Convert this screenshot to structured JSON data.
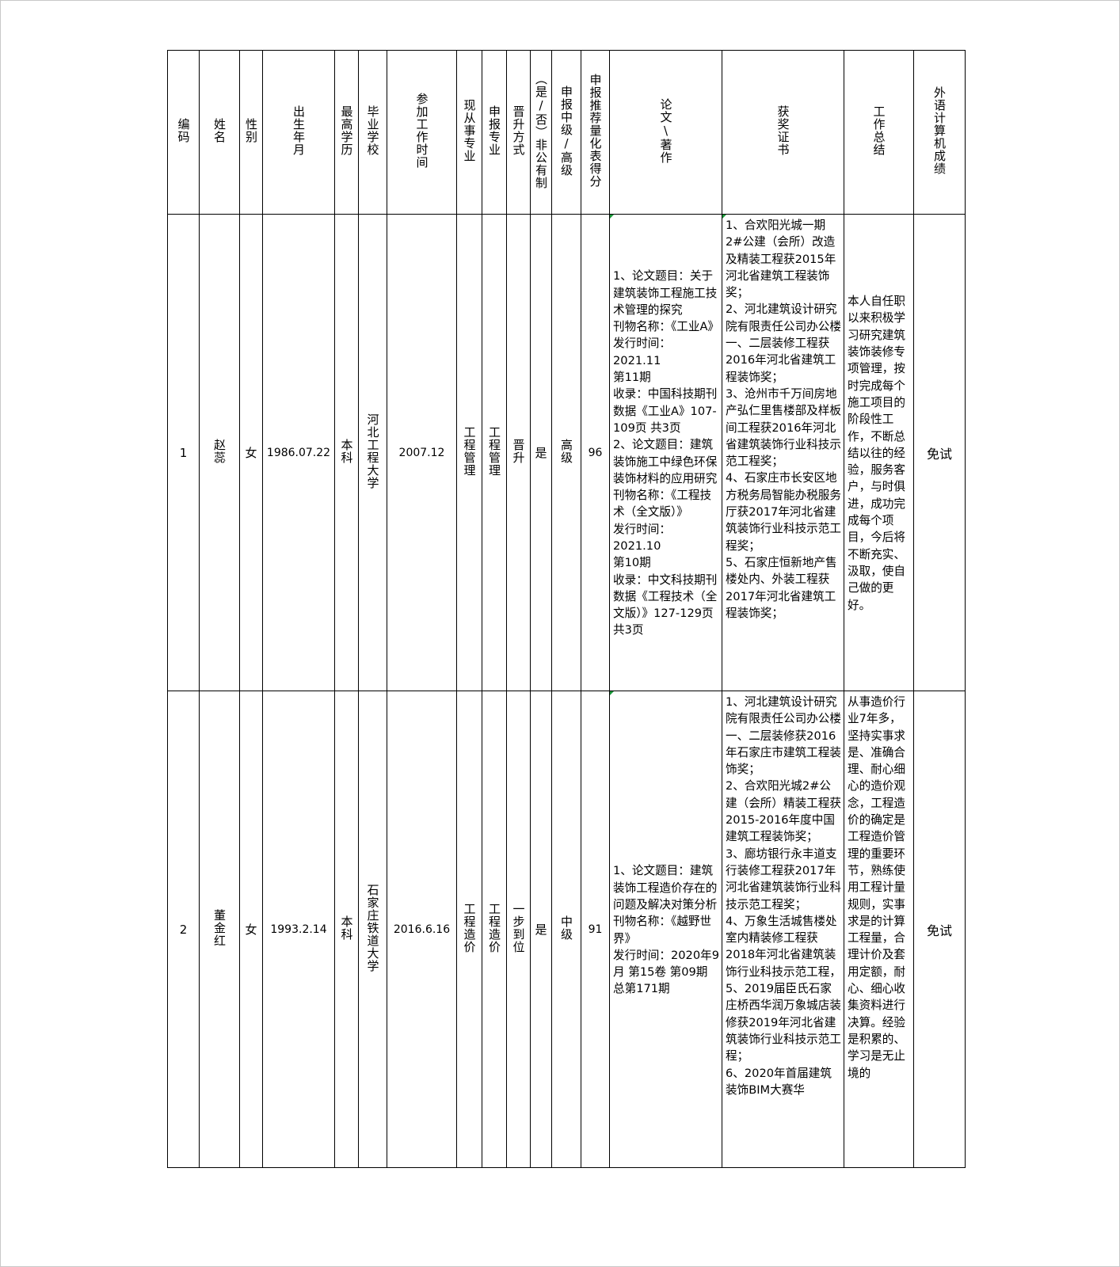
{
  "headers": [
    "编码",
    "姓名",
    "性别",
    "出生年月",
    "最高学历",
    "毕业学校",
    "参加工作时间",
    "现从事专业",
    "申报专业",
    "晋升方式",
    "（是/否）非公有制",
    "申报中级/高级",
    "申报推荐量化表得分",
    "论文\\著作",
    "获奖证书",
    "工作总结",
    "外语计算机成绩"
  ],
  "rows": [
    {
      "id": "1",
      "name": "赵蕊",
      "gender": "女",
      "birth": "1986.07.22",
      "education": "本科",
      "school": "河北工程大学",
      "work_start": "2007.12",
      "current_major": "工程管理",
      "apply_major": "工程管理",
      "promotion": "晋升",
      "non_public": "是",
      "level": "高级",
      "score": "96",
      "papers": "1、论文题目：关于建筑装饰工程施工技术管理的探究\n刊物名称：《工业A》\n发行时间：\n2021.11\n第11期\n收录：中国科技期刊数据《工业A》107-109页 共3页\n2、论文题目：建筑装饰施工中绿色环保装饰材料的应用研究\n刊物名称：《工程技术（全文版）》\n发行时间：\n2021.10\n第10期\n收录：中文科技期刊数据《工程技术（全文版）》127-129页 共3页",
      "awards": "1、合欢阳光城一期2#公建（会所）改造及精装工程获2015年河北省建筑工程装饰奖；\n2、河北建筑设计研究院有限责任公司办公楼一、二层装修工程获2016年河北省建筑工程装饰奖；\n3、沧州市千万间房地产弘仁里售楼部及样板间工程获2016年河北省建筑装饰行业科技示范工程奖；\n4、石家庄市长安区地方税务局智能办税服务厅获2017年河北省建筑装饰行业科技示范工程奖；\n5、石家庄恒新地产售楼处内、外装工程获2017年河北省建筑工程装饰奖；",
      "summary": "本人自任职以来积极学习研究建筑装饰装修专项管理，按时完成每个施工项目的阶段性工作，不断总结以往的经验，服务客户，与时俱进，成功完成每个项目，今后将不断充实、汲取，使自己做的更好。",
      "foreign": "免试"
    },
    {
      "id": "2",
      "name": "董金红",
      "gender": "女",
      "birth": "1993.2.14",
      "education": "本科",
      "school": "石家庄铁道大学",
      "work_start": "2016.6.16",
      "current_major": "工程造价",
      "apply_major": "工程造价",
      "promotion": "一步到位",
      "non_public": "是",
      "level": "中级",
      "score": "91",
      "papers": "1、论文题目：建筑装饰工程造价存在的问题及解决对策分析\n刊物名称：《越野世界》\n发行时间：2020年9月 第15卷 第09期 总第171期",
      "awards": "1、河北建筑设计研究院有限责任公司办公楼一、二层装修获2016年石家庄市建筑工程装饰奖；\n2、合欢阳光城2#公建（会所）精装工程获2015-2016年度中国建筑工程装饰奖；\n3、廊坊银行永丰道支行装修工程获2017年河北省建筑装饰行业科技示范工程奖；\n4、万象生活城售楼处室内精装修工程获2018年河北省建筑装饰行业科技示范工程，\n5、2019届臣氏石家庄桥西华润万象城店装修获2019年河北省建筑装饰行业科技示范工程；\n6、2020年首届建筑装饰BIM大赛华",
      "summary": "从事造价行业7年多，坚持实事求是、准确合理、耐心细心的造价观念，工程造价的确定是工程造价管理的重要环节，熟练使用工程计量规则，实事求是的计算工程量，合理计价及套用定额，耐心、细心收集资料进行决算。经验是积累的、学习是无止境的",
      "foreign": "免试"
    }
  ]
}
